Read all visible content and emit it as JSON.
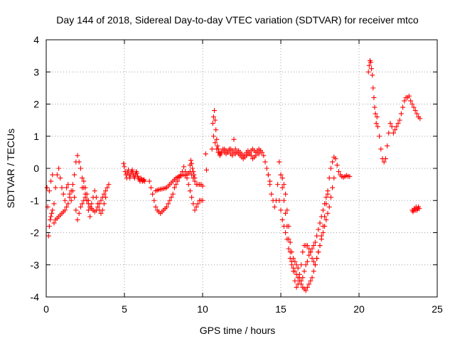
{
  "chart_data": {
    "type": "scatter",
    "title": "Day 144 of 2018, Sidereal Day-to-day VTEC variation (SDTVAR) for receiver mtco",
    "xlabel": "GPS time / hours",
    "ylabel": "SDTVAR / TECUs",
    "xlim": [
      0,
      25
    ],
    "ylim": [
      -4,
      4
    ],
    "x_ticks": [
      0,
      5,
      10,
      15,
      20,
      25
    ],
    "y_ticks": [
      -4,
      -3,
      -2,
      -1,
      0,
      1,
      2,
      3,
      4
    ],
    "grid": true,
    "marker": "plus",
    "color": "#ff0000",
    "series": [
      {
        "name": "seg-a1",
        "x": [
          0.05,
          0.1,
          0.15,
          0.2,
          0.25,
          0.3,
          0.35,
          0.4,
          0.5,
          0.6,
          0.7,
          0.8,
          0.9,
          1.0,
          1.1,
          1.2,
          1.3,
          1.4,
          1.5,
          1.6,
          1.7,
          1.8,
          1.9,
          2.0,
          2.1,
          2.2,
          2.3,
          2.4,
          2.5,
          2.6,
          2.7,
          2.8
        ],
        "y": [
          -0.6,
          -1.2,
          -2.1,
          -1.8,
          -1.6,
          -1.5,
          -1.4,
          -1.3,
          -1.1,
          -0.6,
          -0.2,
          0.0,
          -0.3,
          -0.6,
          -0.8,
          -1.0,
          -0.6,
          -0.5,
          -0.8,
          -1.0,
          -0.7,
          -0.2,
          0.2,
          0.4,
          0.2,
          0.0,
          -0.3,
          -0.6,
          -0.8,
          -1.0,
          -1.3,
          -1.5
        ]
      },
      {
        "name": "seg-a2",
        "x": [
          0.2,
          0.3,
          0.4,
          0.5,
          0.6,
          0.7,
          0.8,
          0.9,
          1.0,
          1.1,
          1.2,
          1.3,
          1.4,
          1.5,
          1.6,
          1.7,
          1.8,
          1.9,
          2.0,
          2.1,
          2.2,
          2.3,
          2.4,
          2.5,
          2.6,
          2.7,
          2.8,
          2.9,
          3.0,
          3.1,
          3.2,
          3.3,
          3.4,
          3.5,
          3.6,
          3.7,
          3.8,
          3.9,
          4.0
        ],
        "y": [
          -0.7,
          -0.4,
          -0.2,
          -1.7,
          -1.6,
          -1.55,
          -1.5,
          -1.45,
          -1.4,
          -1.35,
          -1.3,
          -1.2,
          -1.1,
          -0.9,
          -0.7,
          -0.5,
          -0.9,
          -1.3,
          -1.6,
          -1.4,
          -1.2,
          -1.1,
          -1.0,
          -0.9,
          -1.0,
          -1.1,
          -1.2,
          -1.25,
          -1.3,
          -1.35,
          -1.3,
          -1.2,
          -1.1,
          -1.0,
          -0.9,
          -0.8,
          -0.7,
          -0.6,
          -0.5
        ]
      },
      {
        "name": "seg-a3",
        "x": [
          2.3,
          2.4,
          2.5,
          2.6,
          2.7,
          2.8,
          2.9,
          3.0,
          3.1,
          3.2,
          3.3,
          3.4,
          3.5,
          3.6,
          3.7,
          3.8
        ],
        "y": [
          -0.6,
          -0.4,
          -0.6,
          -0.8,
          -1.0,
          -1.2,
          -1.1,
          -0.9,
          -0.7,
          -0.9,
          -1.1,
          -1.3,
          -1.4,
          -1.3,
          -1.1,
          -0.9
        ]
      },
      {
        "name": "seg-b",
        "x": [
          4.95,
          5.0,
          5.05,
          5.1,
          5.15,
          5.2,
          5.25,
          5.3,
          5.35,
          5.4,
          5.45,
          5.5,
          5.55,
          5.6,
          5.65,
          5.7,
          5.75,
          5.8,
          5.85,
          5.9,
          5.95,
          6.0,
          6.05,
          6.1,
          6.15,
          6.2,
          6.25,
          6.3
        ],
        "y": [
          0.15,
          0.05,
          -0.1,
          -0.2,
          -0.3,
          -0.15,
          -0.05,
          -0.2,
          -0.3,
          -0.2,
          -0.1,
          -0.05,
          -0.15,
          -0.25,
          -0.3,
          -0.2,
          -0.1,
          -0.15,
          -0.25,
          -0.3,
          -0.35,
          -0.4,
          -0.3,
          -0.35,
          -0.4,
          -0.38,
          -0.35,
          -0.4
        ]
      },
      {
        "name": "seg-c1",
        "x": [
          6.6,
          6.7,
          6.8,
          6.9,
          7.0,
          7.1,
          7.2,
          7.3,
          7.4,
          7.5,
          7.6,
          7.7,
          7.8,
          7.9,
          8.0,
          8.1,
          8.2,
          8.3,
          8.4,
          8.5,
          8.6,
          8.7,
          8.8,
          8.9,
          9.0,
          9.1,
          9.2,
          9.3,
          9.4,
          9.5,
          9.6,
          9.7,
          9.8,
          9.9,
          10.0
        ],
        "y": [
          -0.4,
          -0.6,
          -0.8,
          -1.0,
          -1.2,
          -1.3,
          -1.35,
          -1.4,
          -1.35,
          -1.3,
          -1.25,
          -1.2,
          -1.1,
          -1.0,
          -0.9,
          -0.8,
          -0.6,
          -0.5,
          -0.4,
          -0.3,
          -0.2,
          -0.1,
          0.05,
          -0.1,
          -0.3,
          -0.5,
          -0.7,
          -0.9,
          -1.1,
          -1.3,
          -1.2,
          -1.1,
          -1.0,
          -1.0,
          -1.0
        ]
      },
      {
        "name": "seg-c2",
        "x": [
          7.0,
          7.1,
          7.2,
          7.3,
          7.4,
          7.5,
          7.6,
          7.7,
          7.8,
          7.9,
          8.0,
          8.1,
          8.2,
          8.3,
          8.4,
          8.5,
          8.6,
          8.7,
          8.8,
          8.9,
          9.0,
          9.1,
          9.2,
          9.3,
          9.4,
          9.5,
          9.6,
          9.7,
          9.8,
          9.9,
          10.0
        ],
        "y": [
          -0.7,
          -0.68,
          -0.66,
          -0.65,
          -0.64,
          -0.63,
          -0.62,
          -0.6,
          -0.55,
          -0.5,
          -0.45,
          -0.4,
          -0.35,
          -0.3,
          -0.28,
          -0.25,
          -0.22,
          -0.2,
          -0.2,
          -0.22,
          -0.2,
          -0.15,
          -0.1,
          -0.2,
          -0.3,
          -0.4,
          -0.5,
          -0.5,
          -0.5,
          -0.5,
          -0.55
        ]
      },
      {
        "name": "seg-c3",
        "x": [
          9.2,
          9.25,
          9.3,
          9.35,
          9.4,
          9.45,
          9.5
        ],
        "y": [
          0.1,
          0.25,
          0.15,
          0.0,
          -0.1,
          -0.2,
          -0.3
        ]
      },
      {
        "name": "seg-d0",
        "x": [
          10.2,
          10.25
        ],
        "y": [
          0.45,
          -0.05
        ]
      },
      {
        "name": "seg-d1",
        "x": [
          10.6,
          10.65,
          10.7,
          10.75,
          10.8,
          10.85,
          10.9,
          10.95,
          11.0,
          11.05,
          11.1,
          11.15,
          11.2,
          11.3,
          11.4,
          11.5,
          11.6,
          11.7,
          11.8,
          11.9,
          12.0,
          12.1,
          12.2,
          12.3,
          12.4,
          12.5,
          12.6,
          12.7,
          12.8,
          12.9,
          13.0,
          13.1,
          13.2,
          13.3,
          13.4,
          13.5,
          13.6,
          13.7,
          13.8,
          13.9,
          14.0,
          14.1,
          14.2,
          14.3
        ],
        "y": [
          0.6,
          1.4,
          1.6,
          1.8,
          1.5,
          1.2,
          0.9,
          0.7,
          0.6,
          0.5,
          0.4,
          0.45,
          0.5,
          0.55,
          0.6,
          0.55,
          0.5,
          0.55,
          0.6,
          0.55,
          0.5,
          0.45,
          0.5,
          0.55,
          0.5,
          0.45,
          0.4,
          0.35,
          0.4,
          0.45,
          0.5,
          0.55,
          0.6,
          0.55,
          0.5,
          0.55,
          0.6,
          0.55,
          0.5,
          0.4,
          0.2,
          0.0,
          -0.2,
          -0.4
        ]
      },
      {
        "name": "seg-d2",
        "x": [
          10.7,
          10.8,
          10.9,
          11.0,
          11.1,
          11.2,
          11.3,
          11.4,
          11.5,
          11.6,
          11.7,
          11.8,
          11.9,
          12.0,
          12.1,
          12.2,
          12.3,
          12.4,
          12.5,
          12.6,
          12.7,
          12.8,
          12.9,
          13.0,
          13.1,
          13.2,
          13.3,
          13.4,
          13.5,
          13.6,
          13.7
        ],
        "y": [
          1.0,
          0.8,
          0.6,
          0.5,
          0.45,
          0.5,
          0.6,
          0.5,
          0.45,
          0.5,
          0.6,
          0.45,
          0.4,
          0.9,
          0.6,
          0.5,
          0.45,
          0.4,
          0.35,
          0.3,
          0.4,
          0.5,
          0.55,
          0.45,
          0.4,
          0.3,
          0.35,
          0.4,
          0.5,
          0.45,
          0.55
        ]
      },
      {
        "name": "seg-e1",
        "x": [
          14.2,
          14.3,
          14.4,
          14.5,
          14.6,
          14.7,
          14.8,
          14.9,
          15.0,
          15.1,
          15.2,
          15.3,
          15.4,
          15.5,
          15.6,
          15.7,
          15.8,
          15.9,
          16.0,
          16.1,
          16.2,
          16.3,
          16.4,
          16.5,
          16.6,
          16.7,
          16.8,
          16.9,
          17.0,
          17.1,
          17.2,
          17.3,
          17.4,
          17.5,
          17.6,
          17.7,
          17.8,
          17.9,
          18.0,
          18.1,
          18.2,
          18.3,
          18.4,
          18.5,
          18.6
        ],
        "y": [
          -0.2,
          -0.5,
          -0.8,
          -1.0,
          -1.2,
          -1.0,
          -0.5,
          0.2,
          -0.2,
          -0.6,
          -1.0,
          -1.4,
          -1.8,
          -2.2,
          -2.6,
          -2.9,
          -3.2,
          -3.5,
          -3.7,
          -3.6,
          -3.4,
          -3.0,
          -2.6,
          -2.4,
          -2.4,
          -2.4,
          -2.5,
          -2.6,
          -2.8,
          -2.9,
          -3.0,
          -2.8,
          -2.6,
          -2.4,
          -2.1,
          -1.8,
          -1.5,
          -1.1,
          -0.7,
          -0.3,
          0.0,
          0.2,
          0.35,
          0.3,
          0.1
        ]
      },
      {
        "name": "seg-e2",
        "x": [
          14.9,
          15.0,
          15.1,
          15.2,
          15.3,
          15.4,
          15.5,
          15.6,
          15.7,
          15.8,
          15.9,
          16.0,
          16.1,
          16.2,
          16.3,
          16.4,
          16.5,
          16.6,
          16.7,
          16.8,
          16.9,
          17.0,
          17.1,
          17.2,
          17.3,
          17.4,
          17.5,
          17.6,
          17.7,
          17.8,
          17.9,
          18.0,
          18.1,
          18.2,
          18.3,
          18.4
        ],
        "y": [
          -1.0,
          -1.3,
          -1.6,
          -1.8,
          -2.0,
          -2.2,
          -2.5,
          -2.8,
          -3.0,
          -3.1,
          -3.2,
          -3.3,
          -3.4,
          -3.5,
          -3.6,
          -3.7,
          -3.75,
          -3.8,
          -3.7,
          -3.6,
          -3.5,
          -3.4,
          -3.2,
          -3.0,
          -2.8,
          -2.6,
          -2.4,
          -2.2,
          -2.0,
          -1.8,
          -1.6,
          -1.4,
          -1.2,
          -0.9,
          -0.6,
          -0.3
        ]
      },
      {
        "name": "seg-e3",
        "x": [
          15.0,
          15.1,
          15.2,
          15.3,
          15.4,
          15.5,
          15.6,
          15.7,
          15.8,
          15.9,
          16.0,
          16.1,
          16.2,
          16.3,
          16.4,
          16.5,
          16.6,
          16.7,
          16.8,
          16.9,
          17.0,
          17.1,
          17.2,
          17.3,
          17.4,
          17.5,
          17.6,
          17.7,
          17.8,
          17.9,
          18.0
        ],
        "y": [
          -0.2,
          -0.3,
          -0.5,
          -0.8,
          -1.3,
          -1.8,
          -2.3,
          -2.6,
          -2.8,
          -2.9,
          -3.0,
          -3.1,
          -3.3,
          -3.5,
          -3.4,
          -3.2,
          -3.0,
          -2.9,
          -2.7,
          -2.6,
          -2.5,
          -2.4,
          -2.3,
          -2.1,
          -1.9,
          -1.7,
          -1.5,
          -1.3,
          -1.1,
          -0.9,
          -0.8
        ]
      },
      {
        "name": "seg-f",
        "x": [
          18.7,
          18.8,
          18.9,
          19.0,
          19.1,
          19.2,
          19.3,
          19.4
        ],
        "y": [
          -0.1,
          -0.2,
          -0.25,
          -0.28,
          -0.25,
          -0.22,
          -0.25,
          -0.25
        ]
      },
      {
        "name": "seg-g",
        "x": [
          20.6,
          20.65,
          20.7,
          20.75,
          20.8,
          20.85,
          20.9,
          20.95,
          21.0,
          21.05,
          21.1,
          21.15,
          21.2,
          21.3,
          21.4,
          21.5,
          21.6,
          21.7,
          21.8,
          21.9,
          22.0,
          22.1,
          22.2,
          22.3,
          22.4,
          22.5,
          22.6,
          22.7,
          22.8,
          22.9,
          23.0,
          23.1,
          23.2,
          23.3,
          23.4,
          23.5,
          23.6,
          23.7,
          23.8,
          23.9
        ],
        "y": [
          3.0,
          3.2,
          3.35,
          3.3,
          3.1,
          2.9,
          2.5,
          2.2,
          1.9,
          1.7,
          1.4,
          1.6,
          1.3,
          1.0,
          0.6,
          0.3,
          0.2,
          0.3,
          0.7,
          1.1,
          1.4,
          1.3,
          1.1,
          1.2,
          1.3,
          1.4,
          1.5,
          1.7,
          1.9,
          2.1,
          2.2,
          2.2,
          2.25,
          2.1,
          2.0,
          1.9,
          1.8,
          1.7,
          1.6,
          1.55
        ]
      },
      {
        "name": "seg-h",
        "x": [
          23.4,
          23.45,
          23.5,
          23.55,
          23.6,
          23.65,
          23.7,
          23.75,
          23.8,
          23.85
        ],
        "y": [
          -1.3,
          -1.35,
          -1.3,
          -1.25,
          -1.3,
          -1.2,
          -1.3,
          -1.25,
          -1.2,
          -1.25
        ]
      }
    ]
  }
}
